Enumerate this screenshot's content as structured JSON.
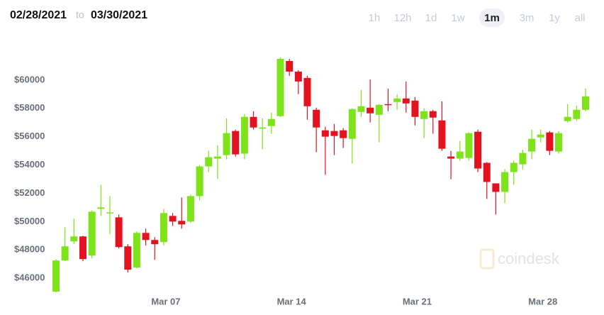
{
  "header": {
    "from": "02/28/2021",
    "to": "to",
    "until": "03/30/2021",
    "ranges": [
      "1h",
      "12h",
      "1d",
      "1w",
      "1m",
      "3m",
      "1y",
      "all"
    ],
    "selected_range": "1m"
  },
  "watermark": "coindesk",
  "chart_data": {
    "type": "candlestick",
    "categories": [
      null,
      null,
      null,
      null,
      null,
      null,
      null,
      null,
      null,
      null,
      null,
      null,
      "Mar 07",
      null,
      null,
      null,
      null,
      null,
      null,
      null,
      null,
      null,
      null,
      null,
      null,
      null,
      "Mar 14",
      null,
      null,
      null,
      null,
      null,
      null,
      null,
      null,
      null,
      null,
      null,
      null,
      null,
      "Mar 21",
      null,
      null,
      null,
      null,
      null,
      null,
      null,
      null,
      null,
      null,
      null,
      null,
      null,
      "Mar 28",
      null,
      null,
      null,
      null,
      null
    ],
    "open": [
      45050,
      47250,
      48600,
      48950,
      47600,
      50900,
      50600,
      50300,
      48250,
      46750,
      49200,
      48700,
      48550,
      50400,
      50050,
      50000,
      51800,
      53900,
      54450,
      54700,
      56400,
      54800,
      57400,
      56600,
      56750,
      57450,
      61350,
      60600,
      60150,
      57900,
      56450,
      56400,
      56450,
      55850,
      57750,
      58050,
      57550,
      58300,
      58450,
      58700,
      58550,
      57250,
      57800,
      57150,
      54600,
      54450,
      54500,
      56350,
      54150,
      52700,
      52100,
      53500,
      54050,
      54950,
      55950,
      56300,
      54950,
      57100,
      57250,
      57900
    ],
    "high": [
      47350,
      49600,
      50200,
      49000,
      50800,
      52600,
      51800,
      50500,
      48400,
      49300,
      49500,
      48900,
      50900,
      50600,
      51700,
      51900,
      54000,
      55000,
      55400,
      57300,
      56500,
      57600,
      57800,
      57300,
      57700,
      61600,
      61500,
      60700,
      60300,
      58050,
      56700,
      56900,
      56600,
      58000,
      59300,
      60050,
      58300,
      59400,
      59000,
      59900,
      58800,
      58000,
      57900,
      58500,
      55000,
      55700,
      56300,
      56500,
      54200,
      52700,
      53700,
      54300,
      55100,
      56500,
      56500,
      56400,
      56400,
      58300,
      58200,
      59400
    ],
    "low": [
      45000,
      47200,
      48400,
      47200,
      47400,
      50400,
      49100,
      48100,
      46400,
      46700,
      48300,
      47300,
      48300,
      49700,
      49500,
      49900,
      51500,
      53500,
      53000,
      54400,
      54600,
      54400,
      56500,
      55100,
      56200,
      57400,
      60300,
      59000,
      57200,
      54900,
      53300,
      54700,
      55200,
      54100,
      57400,
      57000,
      55600,
      57800,
      57900,
      57700,
      56800,
      55900,
      56200,
      55000,
      53000,
      54300,
      54300,
      53500,
      51600,
      50500,
      51300,
      52600,
      53700,
      54400,
      55600,
      54700,
      54800,
      57000,
      57100,
      57800
    ],
    "close": [
      47250,
      48250,
      48950,
      47350,
      50700,
      51000,
      50650,
      48200,
      46600,
      49200,
      48700,
      48400,
      50600,
      50000,
      49800,
      51800,
      53900,
      54550,
      54600,
      56250,
      54750,
      57400,
      56650,
      56650,
      57250,
      61500,
      60600,
      59900,
      58150,
      56650,
      56000,
      56050,
      55900,
      57950,
      58150,
      57650,
      58250,
      58250,
      58700,
      58350,
      57400,
      57800,
      57350,
      55150,
      54450,
      54950,
      56250,
      53750,
      52800,
      52100,
      53500,
      54150,
      54850,
      55850,
      56150,
      55000,
      56250,
      57400,
      57900,
      58850
    ],
    "up_color": "#7ee31b",
    "down_color": "#e3121f",
    "ylim": [
      44100,
      62150
    ],
    "yticks": [
      {
        "value": 46000,
        "label": "$46000"
      },
      {
        "value": 48000,
        "label": "$48000"
      },
      {
        "value": 50000,
        "label": "$50000"
      },
      {
        "value": 52000,
        "label": "$52000"
      },
      {
        "value": 54000,
        "label": "$54000"
      },
      {
        "value": 56000,
        "label": "$56000"
      },
      {
        "value": 58000,
        "label": "$58000"
      },
      {
        "value": 60000,
        "label": "$60000"
      }
    ],
    "grid": false
  }
}
